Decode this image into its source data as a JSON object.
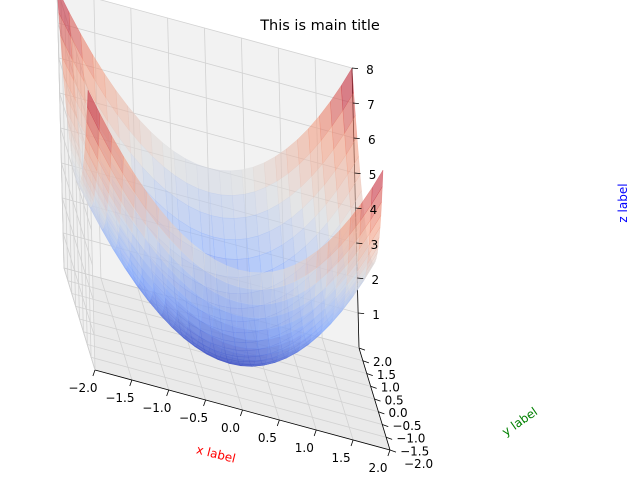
{
  "chart_data": {
    "type": "surface3d",
    "function": "z = x^2 + y^2",
    "title": "This is main title",
    "xlabel": "x label",
    "ylabel": "y label",
    "zlabel": "z label",
    "xlabel_color": "#ff0000",
    "ylabel_color": "#008000",
    "zlabel_color": "#0000ff",
    "xlim": [
      -2.0,
      2.0
    ],
    "ylim": [
      -2.0,
      2.0
    ],
    "zlim": [
      0.0,
      8.0
    ],
    "xticks": [
      "−2.0",
      "−1.5",
      "−1.0",
      "−0.5",
      "0.0",
      "0.5",
      "1.0",
      "1.5",
      "2.0"
    ],
    "yticks": [
      "−2.0",
      "−1.5",
      "−1.0",
      "−0.5",
      "0.0",
      "0.5",
      "1.0",
      "1.5",
      "2.0"
    ],
    "zticks": [
      "1",
      "2",
      "3",
      "4",
      "5",
      "6",
      "7",
      "8"
    ],
    "colormap": "coolwarm",
    "surface_alpha": 0.6
  }
}
